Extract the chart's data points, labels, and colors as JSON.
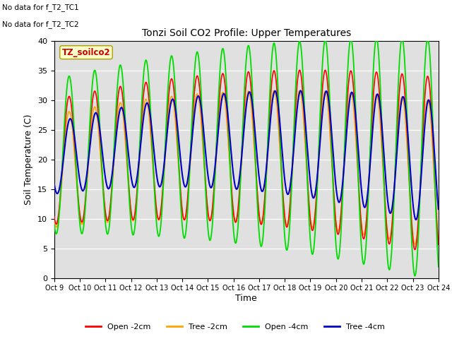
{
  "title": "Tonzi Soil CO2 Profile: Upper Temperatures",
  "xlabel": "Time",
  "ylabel": "Soil Temperature (C)",
  "ylim": [
    0,
    40
  ],
  "xlim": [
    0,
    15
  ],
  "xtick_labels": [
    "Oct 9",
    "Oct 10",
    "Oct 11",
    "Oct 12",
    "Oct 13",
    "Oct 14",
    "Oct 15",
    "Oct 16",
    "Oct 17",
    "Oct 18",
    "Oct 19",
    "Oct 20",
    "Oct 21",
    "Oct 22",
    "Oct 23",
    "Oct 24"
  ],
  "ytick_values": [
    0,
    5,
    10,
    15,
    20,
    25,
    30,
    35,
    40
  ],
  "bg_color": "#e0e0e0",
  "annotation1": "No data for f_T2_TC1",
  "annotation2": "No data for f_T2_TC2",
  "legend_box_label": "TZ_soilco2",
  "lines": {
    "open_2cm": {
      "label": "Open -2cm",
      "color": "#ff0000"
    },
    "tree_2cm": {
      "label": "Tree -2cm",
      "color": "#ffa500"
    },
    "open_4cm": {
      "label": "Open -4cm",
      "color": "#00dd00"
    },
    "tree_4cm": {
      "label": "Tree -4cm",
      "color": "#0000cc"
    }
  }
}
